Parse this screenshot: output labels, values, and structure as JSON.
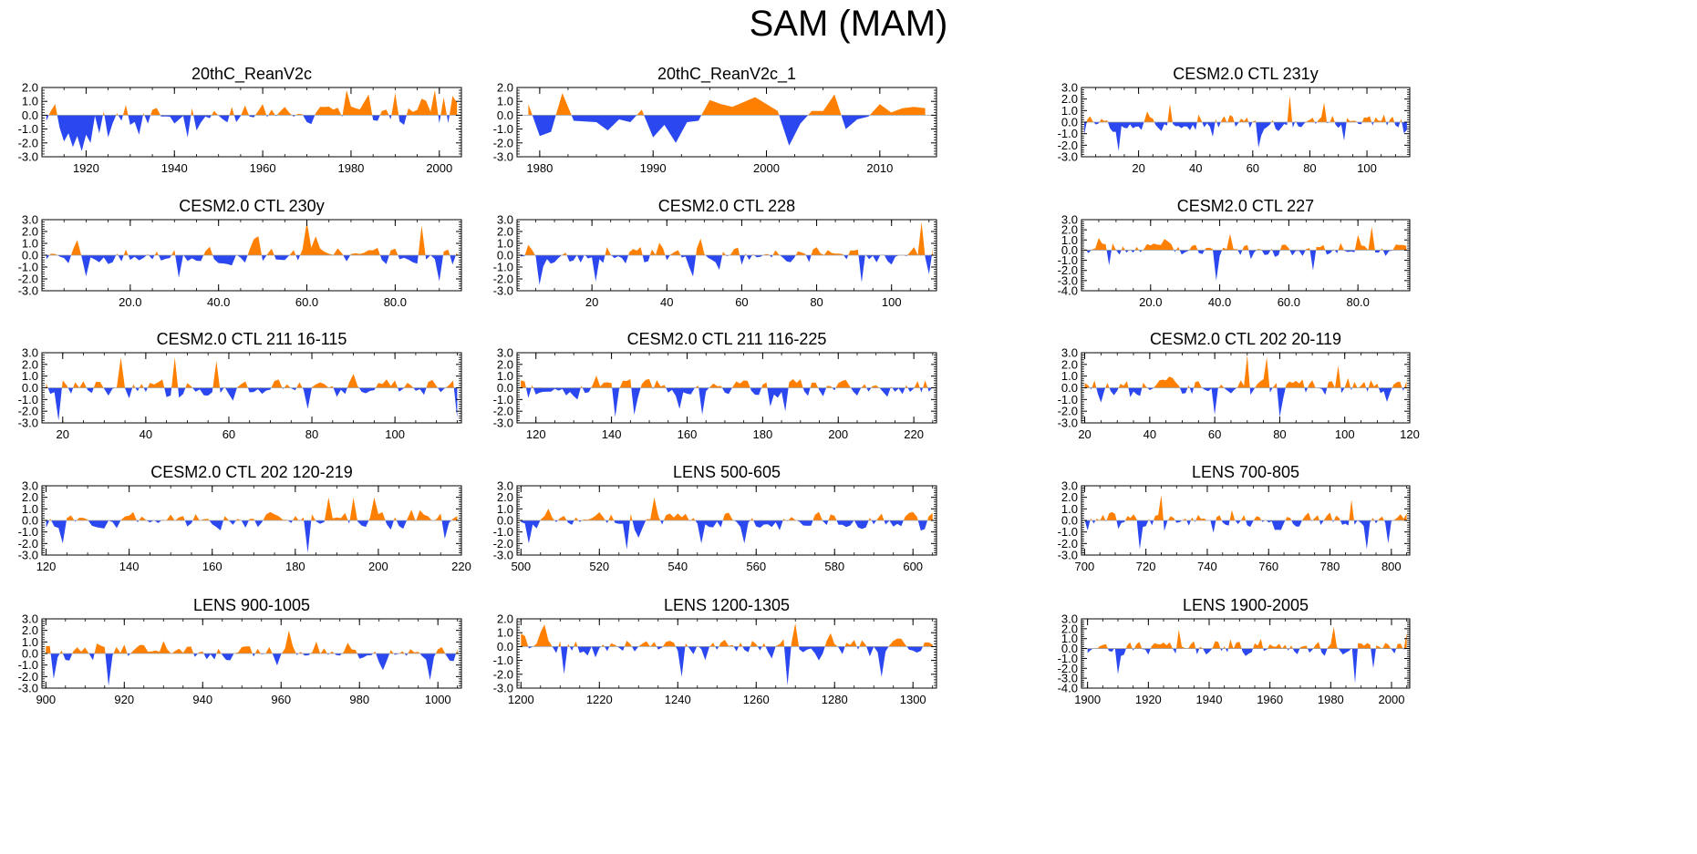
{
  "figure": {
    "title": "SAM (MAM)"
  },
  "colors": {
    "positive": "#ff8000",
    "negative": "#2b47f0",
    "axis": "#000000",
    "zero_line": "#a0a0a0"
  },
  "chart_data": [
    {
      "type": "area",
      "title": "20thC_ReanV2c",
      "xlim": [
        1910,
        2005
      ],
      "ylim": [
        -3,
        2
      ],
      "xticks": [
        1920,
        1940,
        1960,
        1980,
        2000
      ],
      "xtick_labels": [
        "1920",
        "1940",
        "1960",
        "1980",
        "2000"
      ],
      "yticks": [
        -3,
        -2,
        -1,
        0,
        1,
        2
      ],
      "ytick_labels": [
        "-3.0",
        "-2.0",
        "-1.0",
        "0.0",
        "1.0",
        "2.0"
      ],
      "x_start": 1911,
      "x_end": 2004,
      "seed": 11,
      "amp": 0.8,
      "points": [
        [
          1911,
          -0.4
        ],
        [
          1912,
          0.3
        ],
        [
          1913,
          0.8
        ],
        [
          1914,
          -0.9
        ],
        [
          1915,
          -1.9
        ],
        [
          1916,
          -1.3
        ],
        [
          1917,
          -2.3
        ],
        [
          1918,
          -1.5
        ],
        [
          1919,
          -2.6
        ],
        [
          1920,
          -1.4
        ],
        [
          1921,
          -2.0
        ],
        [
          1923,
          -1.3
        ],
        [
          1925,
          -1.6
        ],
        [
          1928,
          -0.4
        ],
        [
          1930,
          -0.7
        ],
        [
          1932,
          -1.4
        ],
        [
          1934,
          -0.6
        ],
        [
          1937,
          -0.1
        ],
        [
          1940,
          -0.6
        ],
        [
          1943,
          -1.6
        ],
        [
          1945,
          -1.1
        ],
        [
          1947,
          -0.1
        ],
        [
          1949,
          0.3
        ],
        [
          1951,
          -0.3
        ],
        [
          1953,
          0.6
        ],
        [
          1956,
          0.7
        ],
        [
          1960,
          0.8
        ],
        [
          1962,
          0.4
        ],
        [
          1965,
          0.6
        ],
        [
          1968,
          0.1
        ],
        [
          1970,
          -0.5
        ],
        [
          1973,
          0.6
        ],
        [
          1976,
          0.4
        ],
        [
          1979,
          1.8
        ],
        [
          1981,
          0.5
        ],
        [
          1984,
          1.5
        ],
        [
          1987,
          0.3
        ],
        [
          1990,
          1.6
        ],
        [
          1993,
          0.5
        ],
        [
          1996,
          1.2
        ],
        [
          1999,
          1.8
        ],
        [
          2001,
          1.3
        ],
        [
          2003,
          1.4
        ],
        [
          2004,
          0.9
        ]
      ]
    },
    {
      "type": "area",
      "title": "20thC_ReanV2c_1",
      "xlim": [
        1978,
        2015
      ],
      "ylim": [
        -3,
        2
      ],
      "xticks": [
        1980,
        1990,
        2000,
        2010
      ],
      "xtick_labels": [
        "1980",
        "1990",
        "2000",
        "2010"
      ],
      "yticks": [
        -3,
        -2,
        -1,
        0,
        1,
        2
      ],
      "ytick_labels": [
        "-3.0",
        "-2.0",
        "-1.0",
        "0.0",
        "1.0",
        "2.0"
      ],
      "points": [
        [
          1979,
          0.8
        ],
        [
          1980,
          -1.5
        ],
        [
          1981,
          -1.2
        ],
        [
          1982,
          1.6
        ],
        [
          1983,
          -0.4
        ],
        [
          1985,
          -0.5
        ],
        [
          1986,
          -1.1
        ],
        [
          1987,
          -0.3
        ],
        [
          1988,
          -0.5
        ],
        [
          1989,
          0.4
        ],
        [
          1990,
          -1.6
        ],
        [
          1991,
          -0.7
        ],
        [
          1992,
          -2.0
        ],
        [
          1993,
          -0.5
        ],
        [
          1994,
          -0.4
        ],
        [
          1995,
          1.1
        ],
        [
          1996,
          0.8
        ],
        [
          1997,
          0.6
        ],
        [
          1999,
          1.3
        ],
        [
          2001,
          0.3
        ],
        [
          2002,
          -2.2
        ],
        [
          2003,
          -0.6
        ],
        [
          2004,
          0.3
        ],
        [
          2005,
          0.3
        ],
        [
          2006,
          1.5
        ],
        [
          2007,
          -1.0
        ],
        [
          2008,
          -0.3
        ],
        [
          2009,
          -0.1
        ],
        [
          2010,
          0.8
        ],
        [
          2011,
          0.2
        ],
        [
          2012,
          0.5
        ],
        [
          2013,
          0.6
        ],
        [
          2014,
          0.5
        ]
      ]
    },
    {
      "type": "area",
      "title": "CESM2.0 CTL 231y",
      "xlim": [
        0,
        115
      ],
      "ylim": [
        -3,
        3
      ],
      "xticks": [
        20,
        40,
        60,
        80,
        100
      ],
      "xtick_labels": [
        "20",
        "40",
        "60",
        "80",
        "100"
      ],
      "yticks": [
        -3,
        -2,
        -1,
        0,
        1,
        2,
        3
      ],
      "ytick_labels": [
        "-3.0",
        "-2.0",
        "-1.0",
        "0.0",
        "1.0",
        "2.0",
        "3.0"
      ],
      "x_start": 1,
      "x_end": 114,
      "seed": 3,
      "amp": 0.8,
      "points": [
        [
          13,
          -2.5
        ],
        [
          31,
          1.6
        ],
        [
          62,
          -2.2
        ],
        [
          73,
          2.3
        ],
        [
          85,
          1.7
        ],
        [
          92,
          -1.6
        ]
      ]
    },
    {
      "type": "area",
      "title": "CESM2.0 CTL 230y",
      "xlim": [
        0,
        95
      ],
      "ylim": [
        -3,
        3
      ],
      "xticks": [
        20,
        40,
        60,
        80
      ],
      "xtick_labels": [
        "20.0",
        "40.0",
        "60.0",
        "80.0"
      ],
      "yticks": [
        -3,
        -2,
        -1,
        0,
        1,
        2,
        3
      ],
      "ytick_labels": [
        "-3.0",
        "-2.0",
        "-1.0",
        "0.0",
        "1.0",
        "2.0",
        "3.0"
      ],
      "x_start": 1,
      "x_end": 94,
      "seed": 4,
      "amp": 0.8,
      "points": [
        [
          10,
          -1.8
        ],
        [
          31,
          -1.9
        ],
        [
          49,
          1.6
        ],
        [
          60,
          2.8
        ],
        [
          62,
          1.6
        ],
        [
          86,
          2.5
        ],
        [
          90,
          -2.2
        ]
      ]
    },
    {
      "type": "area",
      "title": "CESM2.0 CTL 228",
      "xlim": [
        0,
        112
      ],
      "ylim": [
        -3,
        3
      ],
      "xticks": [
        20,
        40,
        60,
        80,
        100
      ],
      "xtick_labels": [
        "20",
        "40",
        "60",
        "80",
        "100"
      ],
      "yticks": [
        -3,
        -2,
        -1,
        0,
        1,
        2,
        3
      ],
      "ytick_labels": [
        "-3.0",
        "-2.0",
        "-1.0",
        "0.0",
        "1.0",
        "2.0",
        "3.0"
      ],
      "x_start": 1,
      "x_end": 111,
      "seed": 5,
      "amp": 0.8,
      "points": [
        [
          6,
          -2.5
        ],
        [
          21,
          -2.2
        ],
        [
          47,
          -1.8
        ],
        [
          92,
          -2.3
        ],
        [
          108,
          2.8
        ],
        [
          110,
          -1.6
        ]
      ]
    },
    {
      "type": "area",
      "title": "CESM2.0 CTL 227",
      "xlim": [
        0,
        95
      ],
      "ylim": [
        -4,
        3
      ],
      "xticks": [
        20,
        40,
        60,
        80
      ],
      "xtick_labels": [
        "20.0",
        "40.0",
        "60.0",
        "80.0"
      ],
      "yticks": [
        -4,
        -3,
        -2,
        -1,
        0,
        1,
        2,
        3
      ],
      "ytick_labels": [
        "-4.0",
        "-3.0",
        "-2.0",
        "-1.0",
        "0.0",
        "1.0",
        "2.0",
        "3.0"
      ],
      "x_start": 1,
      "x_end": 94,
      "seed": 6,
      "amp": 0.8,
      "points": [
        [
          8,
          -1.5
        ],
        [
          39,
          -3.0
        ],
        [
          43,
          1.6
        ],
        [
          67,
          -2.0
        ],
        [
          84,
          2.3
        ],
        [
          80,
          1.5
        ]
      ]
    },
    {
      "type": "area",
      "title": "CESM2.0 CTL 211 16-115",
      "xlim": [
        15,
        116
      ],
      "ylim": [
        -3,
        3
      ],
      "xticks": [
        20,
        40,
        60,
        80,
        100
      ],
      "xtick_labels": [
        "20",
        "40",
        "60",
        "80",
        "100"
      ],
      "yticks": [
        -3,
        -2,
        -1,
        0,
        1,
        2,
        3
      ],
      "ytick_labels": [
        "-3.0",
        "-2.0",
        "-1.0",
        "0.0",
        "1.0",
        "2.0",
        "3.0"
      ],
      "x_start": 16,
      "x_end": 115,
      "seed": 7,
      "amp": 0.8,
      "points": [
        [
          19,
          -2.8
        ],
        [
          34,
          2.6
        ],
        [
          47,
          2.6
        ],
        [
          57,
          2.3
        ],
        [
          79,
          -1.8
        ],
        [
          115,
          -2.6
        ]
      ]
    },
    {
      "type": "area",
      "title": "CESM2.0 CTL 211 116-225",
      "xlim": [
        115,
        226
      ],
      "ylim": [
        -3,
        3
      ],
      "xticks": [
        120,
        140,
        160,
        180,
        200,
        220
      ],
      "xtick_labels": [
        "120",
        "140",
        "160",
        "180",
        "200",
        "220"
      ],
      "yticks": [
        -3,
        -2,
        -1,
        0,
        1,
        2,
        3
      ],
      "ytick_labels": [
        "-3.0",
        "-2.0",
        "-1.0",
        "0.0",
        "1.0",
        "2.0",
        "3.0"
      ],
      "x_start": 116,
      "x_end": 225,
      "seed": 8,
      "amp": 0.8,
      "points": [
        [
          141,
          -2.5
        ],
        [
          146,
          -2.3
        ],
        [
          158,
          -1.8
        ],
        [
          164,
          -2.3
        ],
        [
          182,
          -1.6
        ],
        [
          186,
          -2.0
        ]
      ]
    },
    {
      "type": "area",
      "title": "CESM2.0 CTL 202 20-119",
      "xlim": [
        19,
        120
      ],
      "ylim": [
        -3,
        3
      ],
      "xticks": [
        20,
        40,
        60,
        80,
        100,
        120
      ],
      "xtick_labels": [
        "20",
        "40",
        "60",
        "80",
        "100",
        "120"
      ],
      "yticks": [
        -3,
        -2,
        -1,
        0,
        1,
        2,
        3
      ],
      "ytick_labels": [
        "-3.0",
        "-2.0",
        "-1.0",
        "0.0",
        "1.0",
        "2.0",
        "3.0"
      ],
      "x_start": 20,
      "x_end": 119,
      "seed": 9,
      "amp": 0.8,
      "points": [
        [
          60,
          -2.3
        ],
        [
          70,
          2.8
        ],
        [
          76,
          2.6
        ],
        [
          80,
          -2.5
        ],
        [
          98,
          1.9
        ]
      ]
    },
    {
      "type": "area",
      "title": "CESM2.0 CTL 202 120-219",
      "xlim": [
        119,
        220
      ],
      "ylim": [
        -3,
        3
      ],
      "xticks": [
        120,
        140,
        160,
        180,
        200,
        220
      ],
      "xtick_labels": [
        "120",
        "140",
        "160",
        "180",
        "200",
        "220"
      ],
      "yticks": [
        -3,
        -2,
        -1,
        0,
        1,
        2,
        3
      ],
      "ytick_labels": [
        "-3.0",
        "-2.0",
        "-1.0",
        "0.0",
        "1.0",
        "2.0",
        "3.0"
      ],
      "x_start": 120,
      "x_end": 219,
      "seed": 10,
      "amp": 0.8,
      "points": [
        [
          124,
          -2.0
        ],
        [
          183,
          -2.8
        ],
        [
          188,
          2.0
        ],
        [
          194,
          2.0
        ],
        [
          199,
          2.0
        ],
        [
          216,
          -1.6
        ]
      ]
    },
    {
      "type": "area",
      "title": "LENS 500-605",
      "xlim": [
        499,
        606
      ],
      "ylim": [
        -3,
        3
      ],
      "xticks": [
        500,
        520,
        540,
        560,
        580,
        600
      ],
      "xtick_labels": [
        "500",
        "520",
        "540",
        "560",
        "580",
        "600"
      ],
      "yticks": [
        -3,
        -2,
        -1,
        0,
        1,
        2,
        3
      ],
      "ytick_labels": [
        "-3.0",
        "-2.0",
        "-1.0",
        "0.0",
        "1.0",
        "2.0",
        "3.0"
      ],
      "x_start": 500,
      "x_end": 605,
      "seed": 12,
      "amp": 0.8,
      "points": [
        [
          502,
          -2.0
        ],
        [
          527,
          -2.5
        ],
        [
          534,
          2.0
        ],
        [
          546,
          -2.0
        ],
        [
          557,
          -2.0
        ]
      ]
    },
    {
      "type": "area",
      "title": "LENS 700-805",
      "xlim": [
        699,
        806
      ],
      "ylim": [
        -3,
        3
      ],
      "xticks": [
        700,
        720,
        740,
        760,
        780,
        800
      ],
      "xtick_labels": [
        "700",
        "720",
        "740",
        "760",
        "780",
        "800"
      ],
      "yticks": [
        -3,
        -2,
        -1,
        0,
        1,
        2,
        3
      ],
      "ytick_labels": [
        "-3.0",
        "-2.0",
        "-1.0",
        "0.0",
        "1.0",
        "2.0",
        "3.0"
      ],
      "x_start": 700,
      "x_end": 805,
      "seed": 13,
      "amp": 0.8,
      "points": [
        [
          718,
          -2.5
        ],
        [
          725,
          2.2
        ],
        [
          787,
          1.8
        ],
        [
          792,
          -2.5
        ],
        [
          799,
          -2.0
        ]
      ]
    },
    {
      "type": "area",
      "title": "LENS 900-1005",
      "xlim": [
        899,
        1006
      ],
      "ylim": [
        -3,
        3
      ],
      "xticks": [
        900,
        920,
        940,
        960,
        980,
        1000
      ],
      "xtick_labels": [
        "900",
        "920",
        "940",
        "960",
        "980",
        "1000"
      ],
      "yticks": [
        -3,
        -2,
        -1,
        0,
        1,
        2,
        3
      ],
      "ytick_labels": [
        "-3.0",
        "-2.0",
        "-1.0",
        "0.0",
        "1.0",
        "2.0",
        "3.0"
      ],
      "x_start": 900,
      "x_end": 1005,
      "seed": 14,
      "amp": 0.8,
      "points": [
        [
          902,
          -2.2
        ],
        [
          916,
          -2.8
        ],
        [
          962,
          2.0
        ],
        [
          998,
          -2.3
        ]
      ]
    },
    {
      "type": "area",
      "title": "LENS 1200-1305",
      "xlim": [
        1199,
        1306
      ],
      "ylim": [
        -3,
        2
      ],
      "xticks": [
        1200,
        1220,
        1240,
        1260,
        1280,
        1300
      ],
      "xtick_labels": [
        "1200",
        "1220",
        "1240",
        "1260",
        "1280",
        "1300"
      ],
      "yticks": [
        -3,
        -2,
        -1,
        0,
        1,
        2
      ],
      "ytick_labels": [
        "-3.0",
        "-2.0",
        "-1.0",
        "0.0",
        "1.0",
        "2.0"
      ],
      "x_start": 1200,
      "x_end": 1305,
      "seed": 15,
      "amp": 0.7,
      "points": [
        [
          1206,
          1.6
        ],
        [
          1211,
          -2.0
        ],
        [
          1241,
          -2.2
        ],
        [
          1268,
          -2.8
        ],
        [
          1270,
          1.7
        ],
        [
          1292,
          -2.2
        ]
      ]
    },
    {
      "type": "area",
      "title": "LENS 1900-2005",
      "xlim": [
        1898,
        2006
      ],
      "ylim": [
        -4,
        3
      ],
      "xticks": [
        1900,
        1920,
        1940,
        1960,
        1980,
        2000
      ],
      "xtick_labels": [
        "1900",
        "1920",
        "1940",
        "1960",
        "1980",
        "2000"
      ],
      "yticks": [
        -4,
        -3,
        -2,
        -1,
        0,
        1,
        2,
        3
      ],
      "ytick_labels": [
        "-4.0",
        "-3.0",
        "-2.0",
        "-1.0",
        "0.0",
        "1.0",
        "2.0",
        "3.0"
      ],
      "x_start": 1900,
      "x_end": 2005,
      "seed": 16,
      "amp": 0.8,
      "points": [
        [
          1910,
          -2.6
        ],
        [
          1930,
          1.9
        ],
        [
          1981,
          2.2
        ],
        [
          1988,
          -3.5
        ],
        [
          1994,
          -2.0
        ],
        [
          2005,
          1.6
        ]
      ]
    }
  ]
}
